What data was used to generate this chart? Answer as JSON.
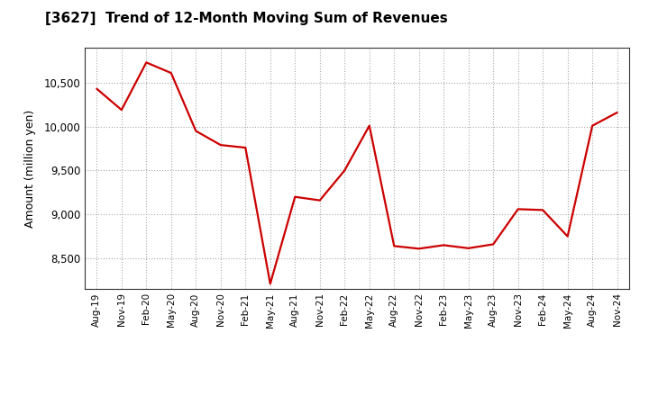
{
  "title": "[3627]  Trend of 12-Month Moving Sum of Revenues",
  "ylabel": "Amount (million yen)",
  "line_color": "#CC0000",
  "background_color": "#FFFFFF",
  "plot_bg_color": "#FFFFFF",
  "grid_color": "#AAAAAA",
  "ylim": [
    8150,
    10900
  ],
  "yticks": [
    8500,
    9000,
    9500,
    10000,
    10500
  ],
  "labels": [
    "Aug-19",
    "Nov-19",
    "Feb-20",
    "May-20",
    "Aug-20",
    "Nov-20",
    "Feb-21",
    "May-21",
    "Aug-21",
    "Nov-21",
    "Feb-22",
    "May-22",
    "Aug-22",
    "Nov-22",
    "Feb-23",
    "May-23",
    "Aug-23",
    "Nov-23",
    "Feb-24",
    "May-24",
    "Aug-24",
    "Nov-24"
  ],
  "values": [
    10430,
    10190,
    10730,
    10610,
    9950,
    9790,
    9760,
    8210,
    9200,
    9160,
    9500,
    10010,
    8640,
    8610,
    8650,
    8615,
    8660,
    9060,
    9050,
    8750,
    10010,
    10160
  ]
}
